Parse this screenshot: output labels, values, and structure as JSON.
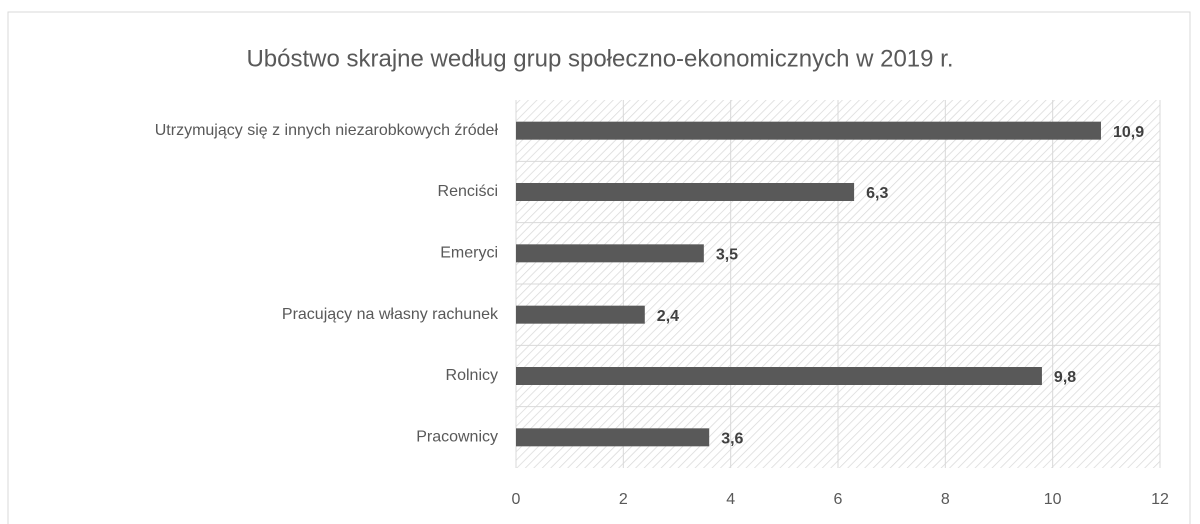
{
  "chart_data": {
    "type": "bar",
    "orientation": "horizontal",
    "title": "Ubóstwo skrajne według grup społeczno-ekonomicznych w 2019 r.",
    "categories": [
      "Utrzymujący się z innych niezarobkowych źródeł",
      "Renciści",
      "Emeryci",
      "Pracujący na własny rachunek",
      "Rolnicy",
      "Pracownicy"
    ],
    "values": [
      10.9,
      6.3,
      3.5,
      2.4,
      9.8,
      3.6
    ],
    "value_labels": [
      "10,9",
      "6,3",
      "3,5",
      "2,4",
      "9,8",
      "3,6"
    ],
    "color": "#595959",
    "xlim": [
      0,
      12
    ],
    "xticks": [
      0,
      2,
      4,
      6,
      8,
      10,
      12
    ],
    "grid": true
  }
}
